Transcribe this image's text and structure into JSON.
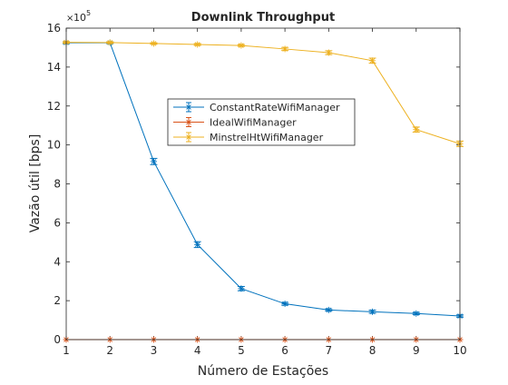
{
  "chart_data": {
    "type": "line",
    "title": "Downlink Throughput",
    "xlabel": "Número de Estações",
    "ylabel": "Vazão útil [bps]",
    "xlim": [
      1,
      10
    ],
    "ylim": [
      0,
      1600000
    ],
    "x_ticks": [
      1,
      2,
      3,
      4,
      5,
      6,
      7,
      8,
      9,
      10
    ],
    "y_ticks": [
      0,
      2,
      4,
      6,
      8,
      10,
      12,
      14,
      16
    ],
    "y_scale_base": "10",
    "y_scale_exp": "5",
    "y_multiplier": 100000,
    "legend_position": "upper-center",
    "grid": false,
    "x": [
      1,
      2,
      3,
      4,
      5,
      6,
      7,
      8,
      9,
      10
    ],
    "series": [
      {
        "name": "ConstantRateWifiManager",
        "color": "#0072BD",
        "values": [
          1525000,
          1525000,
          915000,
          488000,
          262000,
          184000,
          152000,
          143000,
          134000,
          121000
        ],
        "errors": [
          5000,
          5000,
          16000,
          15000,
          11000,
          7000,
          6000,
          8000,
          6000,
          6000
        ]
      },
      {
        "name": "IdealWifiManager",
        "color": "#D95319",
        "values": [
          0,
          0,
          0,
          0,
          0,
          0,
          0,
          0,
          0,
          0
        ],
        "errors": [
          0,
          0,
          0,
          0,
          0,
          0,
          0,
          0,
          0,
          0
        ]
      },
      {
        "name": "MinstrelHtWifiManager",
        "color": "#EDB120",
        "values": [
          1527000,
          1526000,
          1521000,
          1516000,
          1511000,
          1493000,
          1474000,
          1433000,
          1079000,
          1006000
        ],
        "errors": [
          4000,
          4000,
          4000,
          5000,
          5000,
          8000,
          10000,
          13000,
          13000,
          14000
        ]
      }
    ]
  }
}
